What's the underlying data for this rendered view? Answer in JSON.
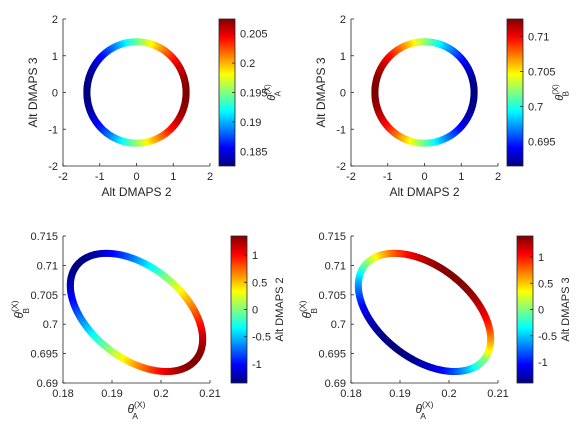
{
  "chart_data": [
    {
      "type": "scatter",
      "xlabel": "Alt DMAPS 2",
      "ylabel": "Alt DMAPS 3",
      "xlim": [
        -2,
        2
      ],
      "ylim": [
        -2,
        2
      ],
      "xticks": [
        "-2",
        "-1",
        "0",
        "1",
        "2"
      ],
      "yticks": [
        "-2",
        "-1",
        "0",
        "1",
        "2"
      ],
      "shape": {
        "cx": 0.0,
        "cy": 0.0,
        "rx": 1.35,
        "ry": 1.38,
        "rotation_deg": 0
      },
      "color_variable": "θ_A^(X)",
      "colorbar": {
        "label": "θ_A^(X)",
        "range": [
          0.1825,
          0.2075
        ],
        "ticks": [
          "0.185",
          "0.19",
          "0.195",
          "0.2",
          "0.205"
        ]
      },
      "color_extreme_high_deg": 0
    },
    {
      "type": "scatter",
      "xlabel": "Alt DMAPS 2",
      "ylabel": "Alt DMAPS 3",
      "xlim": [
        -2,
        2
      ],
      "ylim": [
        -2,
        2
      ],
      "xticks": [
        "-2",
        "-1",
        "0",
        "1",
        "2"
      ],
      "yticks": [
        "-2",
        "-1",
        "0",
        "1",
        "2"
      ],
      "shape": {
        "cx": 0.0,
        "cy": 0.0,
        "rx": 1.35,
        "ry": 1.38,
        "rotation_deg": 0
      },
      "color_variable": "θ_B^(X)",
      "colorbar": {
        "label": "θ_B^(X)",
        "range": [
          0.6915,
          0.7125
        ],
        "ticks": [
          "0.695",
          "0.7",
          "0.705",
          "0.71"
        ]
      },
      "color_extreme_high_deg": 180
    },
    {
      "type": "scatter",
      "xlabel": "θ_A^(X)",
      "ylabel": "θ_B^(X)",
      "xlim": [
        0.18,
        0.21
      ],
      "ylim": [
        0.69,
        0.715
      ],
      "xticks": [
        "0.18",
        "0.19",
        "0.2",
        "0.21"
      ],
      "yticks": [
        "0.69",
        "0.695",
        "0.7",
        "0.705",
        "0.71",
        "0.715"
      ],
      "shape": {
        "cx": 0.195,
        "cy": 0.702,
        "rx": 0.0155,
        "ry": 0.0078,
        "rotation_deg": -38
      },
      "color_variable": "Alt DMAPS 2",
      "colorbar": {
        "label": "Alt DMAPS 2",
        "range": [
          -1.35,
          1.35
        ],
        "ticks": [
          "-1",
          "-0.5",
          "0",
          "0.5",
          "1"
        ]
      },
      "color_extreme_high_deg": 0
    },
    {
      "type": "scatter",
      "xlabel": "θ_A^(X)",
      "ylabel": "θ_B^(X)",
      "xlim": [
        0.18,
        0.21
      ],
      "ylim": [
        0.69,
        0.715
      ],
      "xticks": [
        "0.18",
        "0.19",
        "0.2",
        "0.21"
      ],
      "yticks": [
        "0.69",
        "0.695",
        "0.7",
        "0.705",
        "0.71",
        "0.715"
      ],
      "shape": {
        "cx": 0.195,
        "cy": 0.702,
        "rx": 0.0155,
        "ry": 0.0078,
        "rotation_deg": -38
      },
      "color_variable": "Alt DMAPS 3",
      "colorbar": {
        "label": "Alt DMAPS 3",
        "range": [
          -1.4,
          1.4
        ],
        "ticks": [
          "-1",
          "-0.5",
          "0",
          "0.5",
          "1"
        ]
      },
      "color_extreme_high_deg": 90
    }
  ]
}
